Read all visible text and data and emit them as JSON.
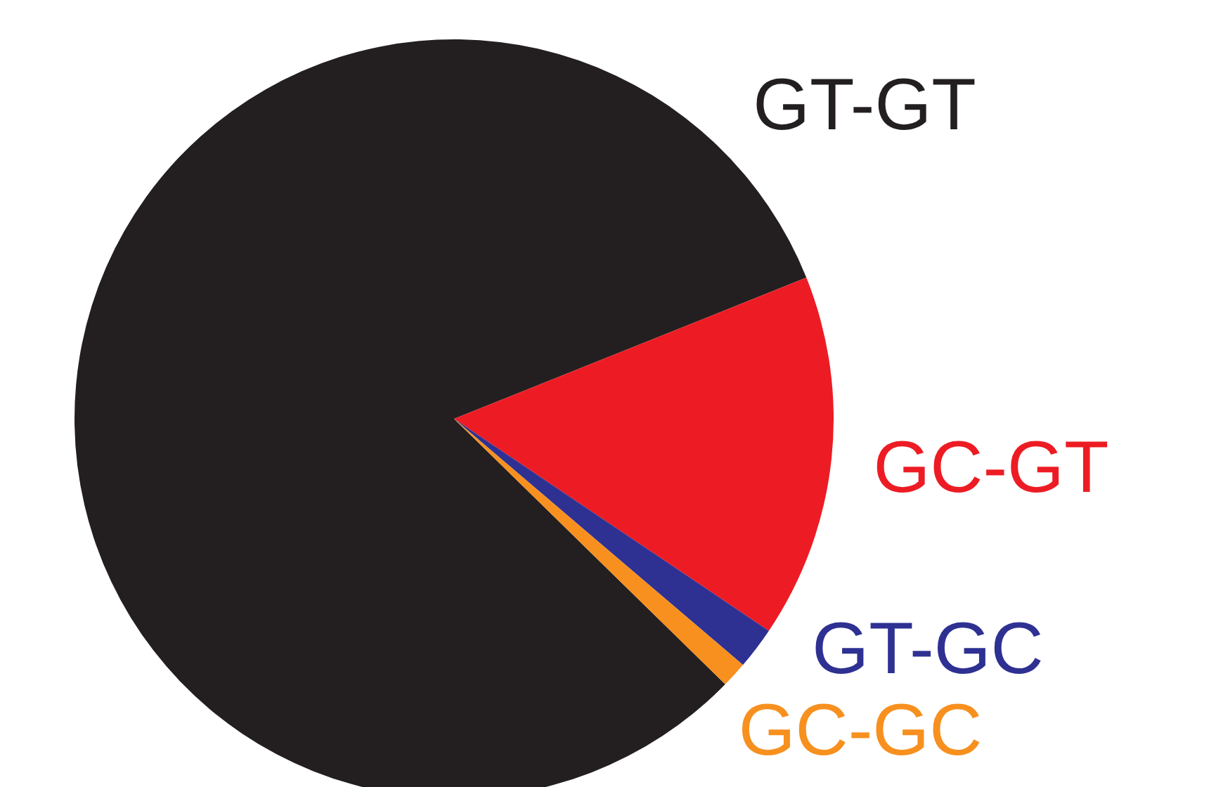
{
  "chart_data": {
    "type": "pie",
    "categories": [
      "GT-GT",
      "GC-GT",
      "GT-GC",
      "GC-GC"
    ],
    "values": [
      81.6,
      15.5,
      1.8,
      1.1
    ],
    "colors": [
      "#231f20",
      "#ed1c24",
      "#2e3192",
      "#f7901e"
    ]
  }
}
